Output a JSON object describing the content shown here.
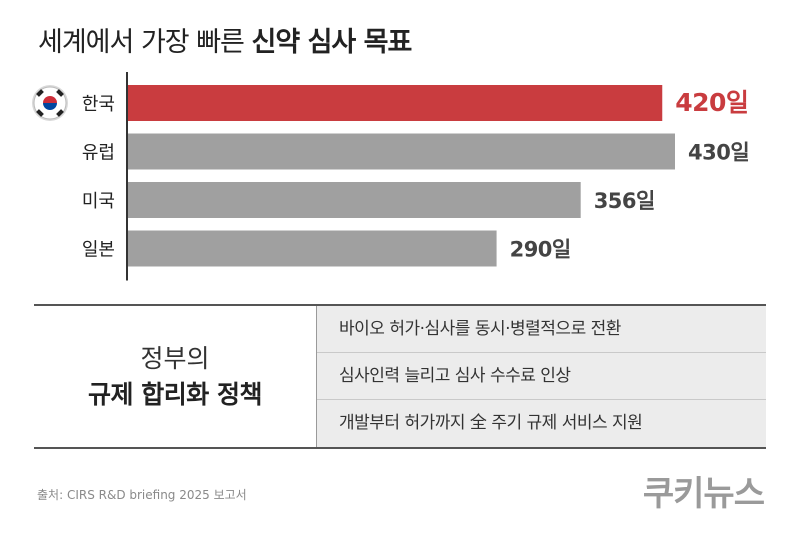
{
  "title": {
    "normal": "세계에서 가장 빠른",
    "bold": "신약 심사 목표"
  },
  "colors": {
    "highlight": "#c93c3f",
    "bar": "#a0a0a0",
    "axis": "#333333",
    "label_default": "#444444"
  },
  "chart_data": {
    "type": "bar",
    "orientation": "horizontal",
    "categories": [
      "한국",
      "유럽",
      "미국",
      "일본"
    ],
    "values": [
      420,
      430,
      356,
      290
    ],
    "value_labels": [
      "420일",
      "430일",
      "356일",
      "290일"
    ],
    "highlight_index": 0,
    "flag_icon_index": 0,
    "xlim": [
      0,
      430
    ]
  },
  "policy": {
    "label_line1": "정부의",
    "label_line2": "규제 합리화 정책",
    "items": [
      "바이오 허가·심사를 동시·병렬적으로 전환",
      "심사인력 늘리고 심사 수수료 인상",
      "개발부터 허가까지 全 주기 규제 서비스 지원"
    ]
  },
  "source": "출처: CIRS R&D briefing 2025 보고서",
  "brand": "쿠키뉴스"
}
